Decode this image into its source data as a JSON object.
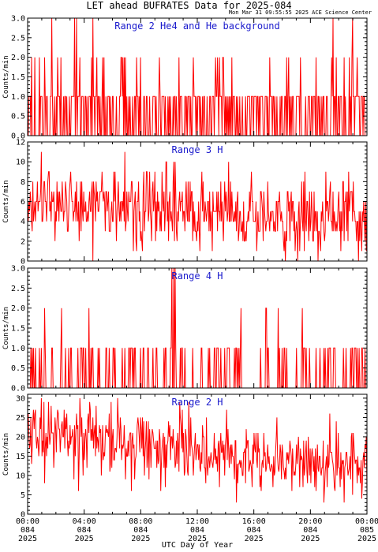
{
  "title": "LET ahead BUFRATES Data for 2025-084",
  "stamp": "Mon Mar 31 09:55:55 2025 ACE Science Center",
  "xlabel": "UTC Day of Year",
  "colors": {
    "trace": "#ff0000",
    "panel_title": "#1a1acc",
    "axis": "#000000"
  },
  "chart_data": [
    {
      "type": "line",
      "title": "Range 2 He4 and He background",
      "ylabel": "Counts/min",
      "ylim": [
        0,
        3
      ],
      "yticks": [
        "0.0",
        "0.5",
        "1.0",
        "1.5",
        "2.0",
        "2.5",
        "3.0"
      ],
      "yticks_val": [
        0,
        0.5,
        1,
        1.5,
        2,
        2.5,
        3
      ],
      "grid": false,
      "series": [
        {
          "kind": "discrete",
          "levels": [
            0,
            1,
            2,
            3
          ],
          "weights": [
            0.47,
            0.44,
            0.07,
            0.02
          ],
          "description_values": [
            0,
            1,
            2,
            3
          ]
        }
      ]
    },
    {
      "type": "line",
      "title": "Range 3 H",
      "ylabel": "Counts/min",
      "ylim": [
        0,
        12
      ],
      "yticks": [
        "0",
        "2",
        "4",
        "6",
        "8",
        "10",
        "12"
      ],
      "yticks_val": [
        0,
        2,
        4,
        6,
        8,
        10,
        12
      ],
      "grid": false,
      "series": [
        {
          "kind": "noisy",
          "start_mean": 6,
          "end_mean": 4,
          "spread": 2.0,
          "min": 0,
          "max": 12
        }
      ]
    },
    {
      "type": "line",
      "title": "Range 4 H",
      "ylabel": "Counts/min",
      "ylim": [
        0,
        3
      ],
      "yticks": [
        "0.0",
        "0.5",
        "1.0",
        "1.5",
        "2.0",
        "2.5",
        "3.0"
      ],
      "yticks_val": [
        0,
        0.5,
        1,
        1.5,
        2,
        2.5,
        3
      ],
      "grid": false,
      "series": [
        {
          "kind": "discrete",
          "levels": [
            0,
            1,
            2,
            3
          ],
          "weights": [
            0.72,
            0.26,
            0.018,
            0.002
          ]
        }
      ]
    },
    {
      "type": "line",
      "title": "Range 2 H",
      "ylabel": "Counts/min",
      "ylim": [
        0,
        31
      ],
      "yticks": [
        "0",
        "5",
        "10",
        "15",
        "20",
        "25",
        "30"
      ],
      "yticks_val": [
        0,
        5,
        10,
        15,
        20,
        25,
        30
      ],
      "grid": false,
      "series": [
        {
          "kind": "noisy",
          "start_mean": 21,
          "end_mean": 12,
          "spread": 4.5,
          "min": 3,
          "max": 31
        }
      ]
    }
  ],
  "xaxis": {
    "range_hours": [
      0,
      24
    ],
    "ticks": [
      {
        "time": "00:00",
        "day": "084",
        "year": "2025",
        "hour": 0
      },
      {
        "time": "04:00",
        "day": "084",
        "year": "2025",
        "hour": 4
      },
      {
        "time": "08:00",
        "day": "084",
        "year": "2025",
        "hour": 8
      },
      {
        "time": "12:00",
        "day": "084",
        "year": "2025",
        "hour": 12
      },
      {
        "time": "16:00",
        "day": "084",
        "year": "2025",
        "hour": 16
      },
      {
        "time": "20:00",
        "day": "084",
        "year": "2025",
        "hour": 20
      },
      {
        "time": "00:00",
        "day": "085",
        "year": "2025",
        "hour": 24
      }
    ]
  }
}
